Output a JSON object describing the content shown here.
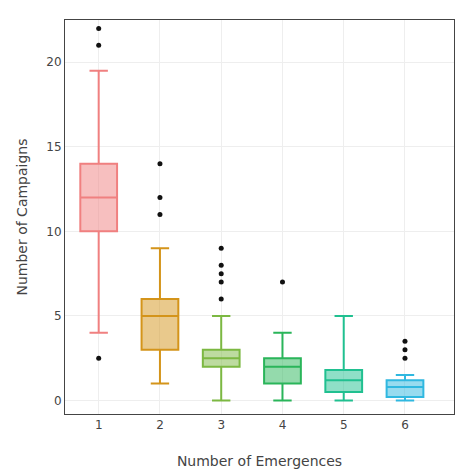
{
  "chart_data": {
    "type": "box",
    "xlabel": "Number of Emergences",
    "ylabel": "Number of Campaigns",
    "x": [
      1,
      2,
      3,
      4,
      5,
      6
    ],
    "q1": [
      10.0,
      3.0,
      2.0,
      1.0,
      0.5,
      0.2
    ],
    "median": [
      12.0,
      5.0,
      2.5,
      2.0,
      1.2,
      0.8
    ],
    "q3": [
      14.0,
      6.0,
      3.0,
      2.5,
      1.8,
      1.2
    ],
    "whisker_low": [
      4.0,
      1.0,
      0.0,
      0.0,
      0.0,
      0.0
    ],
    "whisker_high": [
      19.5,
      9.0,
      5.0,
      4.0,
      5.0,
      1.5
    ],
    "outliers": [
      [
        2.5,
        21.0,
        22.0
      ],
      [
        11.0,
        12.0,
        14.0
      ],
      [
        6.0,
        7.0,
        7.5,
        8.0,
        9.0
      ],
      [
        7.0
      ],
      [],
      [
        2.5,
        3.0,
        3.5
      ]
    ],
    "colors": [
      "#f08080",
      "#d4941a",
      "#7cb842",
      "#2ab55a",
      "#20c090",
      "#30b8e0"
    ],
    "xlim": [
      0.45,
      6.8
    ],
    "ylim": [
      -0.8,
      22.5
    ],
    "xticks": [
      1,
      2,
      3,
      4,
      5,
      6
    ],
    "yticks": [
      0,
      5,
      10,
      15,
      20
    ],
    "grid": true
  }
}
